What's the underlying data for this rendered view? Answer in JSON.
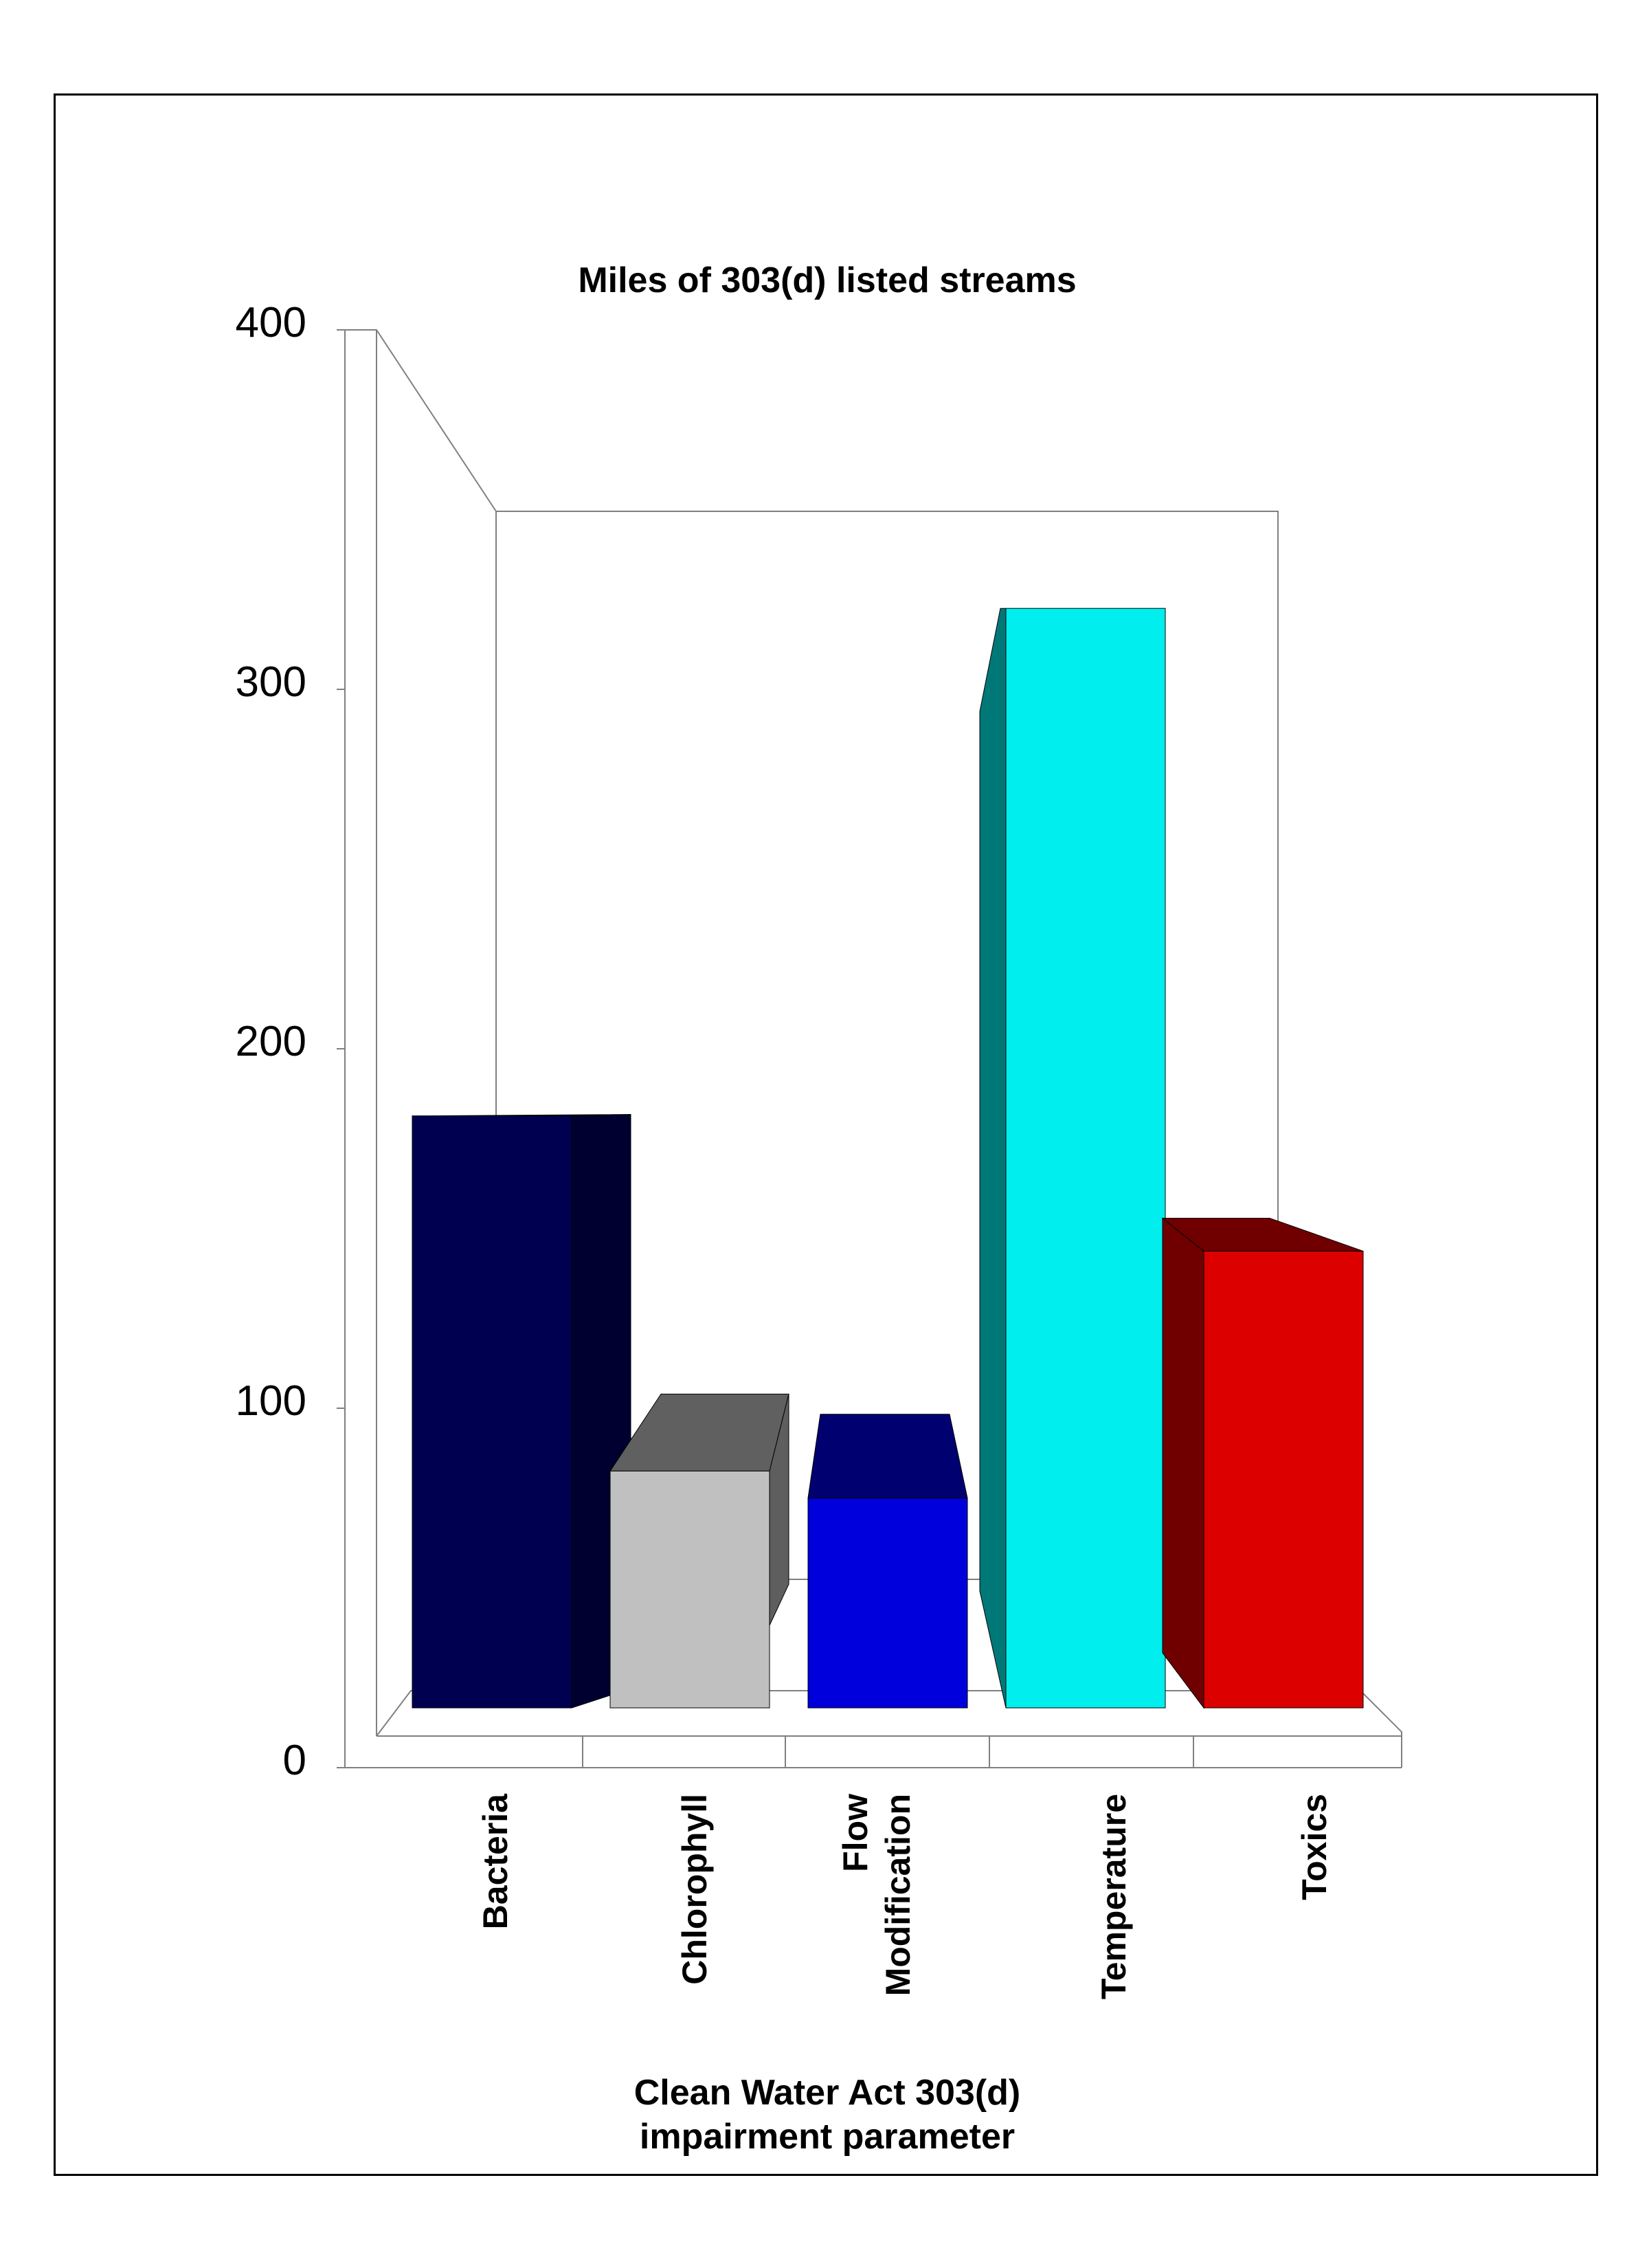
{
  "chart_data": {
    "type": "bar",
    "title": "Miles of 303(d) listed streams",
    "xlabel": [
      "Clean Water Act 303(d)",
      "impairment parameter"
    ],
    "ylabel": "",
    "ylim": [
      0,
      400
    ],
    "yticks": [
      0,
      100,
      200,
      300,
      400
    ],
    "categories": [
      [
        "Bacteria"
      ],
      [
        "Chlorophyll"
      ],
      [
        "Flow",
        "Modification"
      ],
      [
        "Temperature"
      ],
      [
        "Toxics"
      ]
    ],
    "values": [
      175,
      70,
      62,
      325,
      135
    ],
    "colors": {
      "front": [
        "#000050",
        "#c0c0c0",
        "#0000dc",
        "#00eeee",
        "#dc0000"
      ],
      "side": [
        "#000030",
        "#5e5e5e",
        "#000070",
        "#007878",
        "#700000"
      ],
      "top": [
        "#000050",
        "#606060",
        "#000070",
        "#00eeee",
        "#700000"
      ]
    },
    "grid": false,
    "legend": "none",
    "style": "3d-perspective"
  }
}
